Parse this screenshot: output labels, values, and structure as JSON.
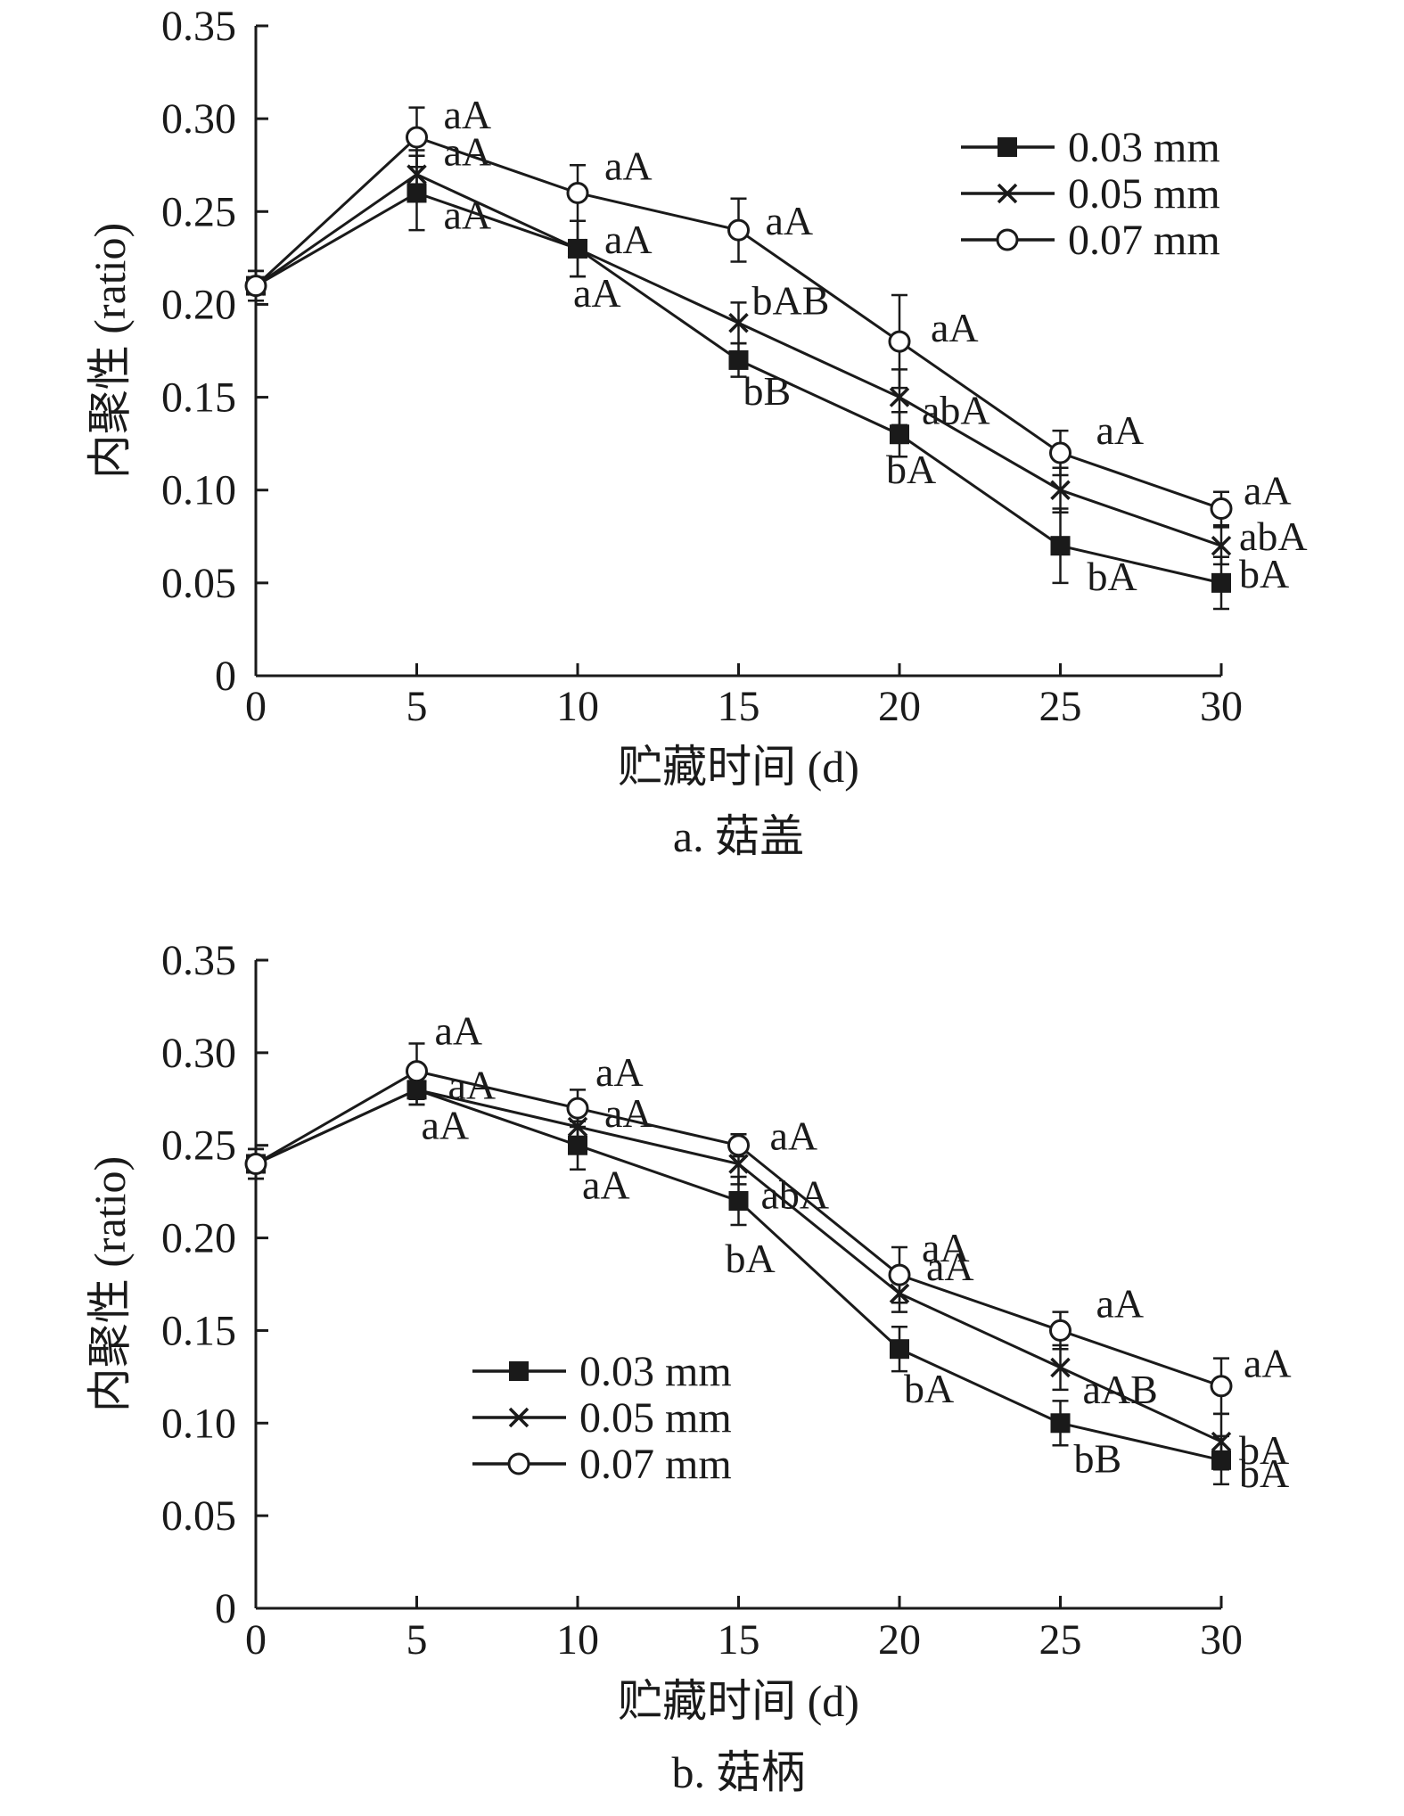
{
  "chart_data": [
    {
      "type": "line",
      "caption": "a. 菇盖",
      "xlabel": "贮藏时间 (d)",
      "ylabel": "内聚性 (ratio)",
      "x": [
        0,
        5,
        10,
        15,
        20,
        25,
        30
      ],
      "xlim": [
        0,
        30
      ],
      "ylim": [
        0,
        0.35
      ],
      "xticks": [
        "0",
        "5",
        "10",
        "15",
        "20",
        "25",
        "30"
      ],
      "yticks": [
        "0",
        "0.05",
        "0.10",
        "0.15",
        "0.20",
        "0.25",
        "0.30",
        "0.35"
      ],
      "grid": false,
      "legend_position": "top-right",
      "series": [
        {
          "name": "0.03 mm",
          "marker": "filled-square",
          "values": [
            0.21,
            0.26,
            0.23,
            0.17,
            0.13,
            0.07,
            0.05
          ],
          "errors": [
            0.008,
            0.02,
            0.015,
            0.009,
            0.012,
            0.02,
            0.014
          ],
          "labels": [
            "",
            "aA",
            "aA",
            "bB",
            "bA",
            "bA",
            "bA"
          ]
        },
        {
          "name": "0.05 mm",
          "marker": "cross",
          "values": [
            0.21,
            0.27,
            0.23,
            0.19,
            0.15,
            0.1,
            0.07
          ],
          "errors": [
            0.008,
            0.013,
            0.015,
            0.011,
            0.015,
            0.012,
            0.01
          ],
          "labels": [
            "",
            "aA",
            "aA",
            "bAB",
            "abA",
            "",
            "abA"
          ]
        },
        {
          "name": "0.07 mm",
          "marker": "open-circle",
          "values": [
            0.21,
            0.29,
            0.26,
            0.24,
            0.18,
            0.12,
            0.09
          ],
          "errors": [
            0.008,
            0.016,
            0.015,
            0.017,
            0.025,
            0.012,
            0.009
          ],
          "labels": [
            "",
            "aA",
            "aA",
            "aA",
            "aA",
            "aA",
            "aA"
          ]
        }
      ]
    },
    {
      "type": "line",
      "caption": "b. 菇柄",
      "xlabel": "贮藏时间 (d)",
      "ylabel": "内聚性 (ratio)",
      "x": [
        0,
        5,
        10,
        15,
        20,
        25,
        30
      ],
      "xlim": [
        0,
        30
      ],
      "ylim": [
        0,
        0.35
      ],
      "xticks": [
        "0",
        "5",
        "10",
        "15",
        "20",
        "25",
        "30"
      ],
      "yticks": [
        "0",
        "0.05",
        "0.10",
        "0.15",
        "0.20",
        "0.25",
        "0.30",
        "0.35"
      ],
      "grid": false,
      "legend_position": "bottom-left",
      "series": [
        {
          "name": "0.03 mm",
          "marker": "filled-square",
          "values": [
            0.24,
            0.28,
            0.25,
            0.22,
            0.14,
            0.1,
            0.08
          ],
          "errors": [
            0.008,
            0.008,
            0.013,
            0.013,
            0.012,
            0.012,
            0.013
          ],
          "labels": [
            "",
            "aA",
            "aA",
            "bA",
            "bA",
            "bB",
            "bA"
          ]
        },
        {
          "name": "0.05 mm",
          "marker": "cross",
          "values": [
            0.24,
            0.28,
            0.26,
            0.24,
            0.17,
            0.13,
            0.09
          ],
          "errors": [
            0.008,
            0.008,
            0.012,
            0.011,
            0.01,
            0.012,
            0.015
          ],
          "labels": [
            "",
            "aA",
            "aA",
            "abA",
            "aA",
            "aAB",
            "bA"
          ]
        },
        {
          "name": "0.07 mm",
          "marker": "open-circle",
          "values": [
            0.24,
            0.29,
            0.27,
            0.25,
            0.18,
            0.15,
            0.12
          ],
          "errors": [
            0.008,
            0.015,
            0.01,
            0.006,
            0.015,
            0.01,
            0.015
          ],
          "labels": [
            "",
            "aA",
            "aA",
            "aA",
            "aA",
            "aA",
            "aA"
          ]
        }
      ]
    }
  ]
}
